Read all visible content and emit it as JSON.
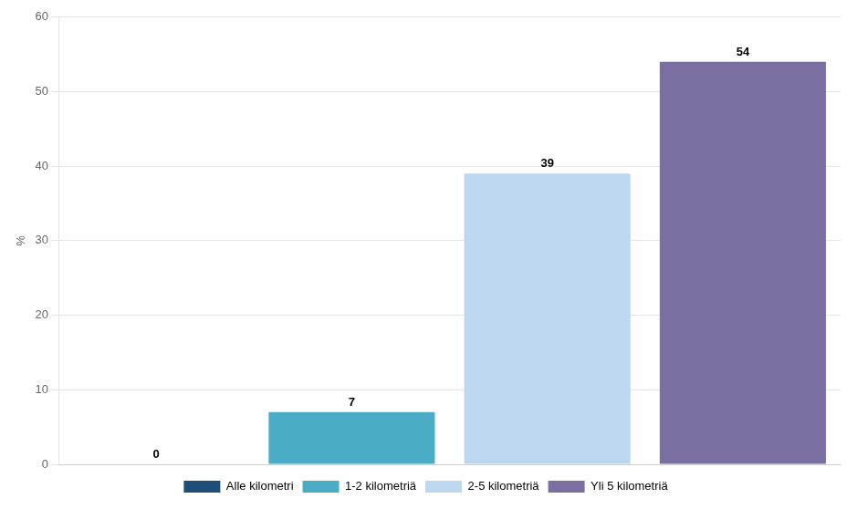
{
  "chart_data": {
    "type": "bar",
    "categories": [
      "Alle kilometri",
      "1-2 kilometriä",
      "2-5 kilometriä",
      "Yli 5 kilometriä"
    ],
    "values": [
      0,
      7,
      39,
      54
    ],
    "colors": [
      "#1f4e79",
      "#4bacc6",
      "#bdd7ee",
      "#7b6ea0"
    ],
    "ylabel": "%",
    "ylim": [
      0,
      60
    ],
    "yticks": [
      0,
      10,
      20,
      30,
      40,
      50,
      60
    ],
    "grid": true,
    "legend": "bottom",
    "data_labels": true,
    "tick_labels": "y"
  }
}
